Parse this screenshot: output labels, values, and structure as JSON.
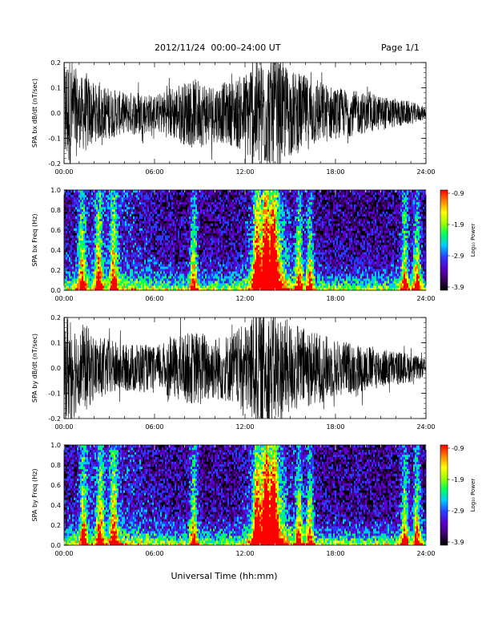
{
  "header": {
    "title": "2012/11/24  00:00–24:00 UT",
    "page": "Page 1/1"
  },
  "xlabel": "Universal Time (hh:mm)",
  "colors": {
    "trace": "#000000",
    "background": "#000000",
    "colorbar": [
      "#000000",
      "#3a0066",
      "#5a00c8",
      "#2a3cff",
      "#00c8ff",
      "#00ff60",
      "#a0ff00",
      "#ffff00",
      "#ff8000",
      "#ff0000"
    ]
  },
  "chart_data": [
    {
      "type": "line",
      "ylabel": "SPA bx dB/dt (nT/sec)",
      "x_ticks": [
        "00:00",
        "06:00",
        "12:00",
        "18:00",
        "24:00"
      ],
      "y_ticks": [
        "0.2",
        "0.1",
        "0.0",
        "-0.1",
        "-0.2"
      ],
      "xlim": [
        0,
        24
      ],
      "ylim": [
        -0.2,
        0.2
      ],
      "envelope": {
        "x": [
          0,
          0.5,
          1,
          1.5,
          2,
          3,
          4,
          5,
          6,
          7,
          8,
          9,
          10,
          11,
          12,
          12.5,
          13,
          13.5,
          14,
          15,
          16,
          17,
          18,
          19,
          20,
          21,
          22,
          23,
          23.5,
          24
        ],
        "amplitude": [
          0.2,
          0.2,
          0.12,
          0.14,
          0.1,
          0.09,
          0.07,
          0.08,
          0.06,
          0.09,
          0.11,
          0.12,
          0.1,
          0.11,
          0.14,
          0.2,
          0.2,
          0.2,
          0.2,
          0.15,
          0.13,
          0.11,
          0.09,
          0.08,
          0.07,
          0.06,
          0.05,
          0.04,
          0.03,
          0.02
        ]
      }
    },
    {
      "type": "heatmap",
      "ylabel": "SPA bx Freq (Hz)",
      "x_ticks": [
        "00:00",
        "06:00",
        "12:00",
        "18:00",
        "24:00"
      ],
      "y_ticks": [
        "1.0",
        "0.8",
        "0.6",
        "0.4",
        "0.2",
        "0.0"
      ],
      "xlim": [
        0,
        24
      ],
      "ylim": [
        0,
        1
      ],
      "colorbar_label": "Log₁₀ Power",
      "colorbar_ticks": [
        "-0.9",
        "-1.9",
        "-2.9",
        "-3.9"
      ],
      "clim": [
        -3.9,
        -0.9
      ],
      "active_bursts": [
        1.2,
        2.3,
        3.3,
        8.6,
        12.8,
        13.4,
        13.9,
        15.6,
        16.3,
        22.6,
        23.4
      ]
    },
    {
      "type": "line",
      "ylabel": "SPA by dB/dt (nT/sec)",
      "x_ticks": [
        "00:00",
        "06:00",
        "12:00",
        "18:00",
        "24:00"
      ],
      "y_ticks": [
        "0.2",
        "0.1",
        "0.0",
        "-0.1",
        "-0.2"
      ],
      "xlim": [
        0,
        24
      ],
      "ylim": [
        -0.2,
        0.2
      ],
      "envelope": {
        "x": [
          0,
          0.5,
          1,
          1.5,
          2,
          3,
          4,
          5,
          6,
          7,
          8,
          9,
          10,
          11,
          12,
          12.5,
          13,
          13.5,
          14,
          15,
          16,
          17,
          18,
          19,
          20,
          21,
          22,
          23,
          23.5,
          24
        ],
        "amplitude": [
          0.2,
          0.2,
          0.13,
          0.15,
          0.11,
          0.1,
          0.08,
          0.09,
          0.07,
          0.1,
          0.12,
          0.13,
          0.11,
          0.12,
          0.15,
          0.2,
          0.2,
          0.2,
          0.2,
          0.16,
          0.14,
          0.12,
          0.1,
          0.09,
          0.08,
          0.07,
          0.06,
          0.05,
          0.04,
          0.03
        ]
      }
    },
    {
      "type": "heatmap",
      "ylabel": "SPA by Freq (Hz)",
      "x_ticks": [
        "00:00",
        "06:00",
        "12:00",
        "18:00",
        "24:00"
      ],
      "y_ticks": [
        "1.0",
        "0.8",
        "0.6",
        "0.4",
        "0.2",
        "0.0"
      ],
      "xlim": [
        0,
        24
      ],
      "ylim": [
        0,
        1
      ],
      "colorbar_label": "Log₁₀ Power",
      "colorbar_ticks": [
        "-0.9",
        "-1.9",
        "-2.9",
        "-3.9"
      ],
      "clim": [
        -3.9,
        -0.9
      ],
      "active_bursts": [
        1.3,
        2.4,
        3.3,
        8.6,
        12.8,
        13.4,
        13.9,
        15.6,
        16.3,
        22.6,
        23.4
      ]
    }
  ]
}
